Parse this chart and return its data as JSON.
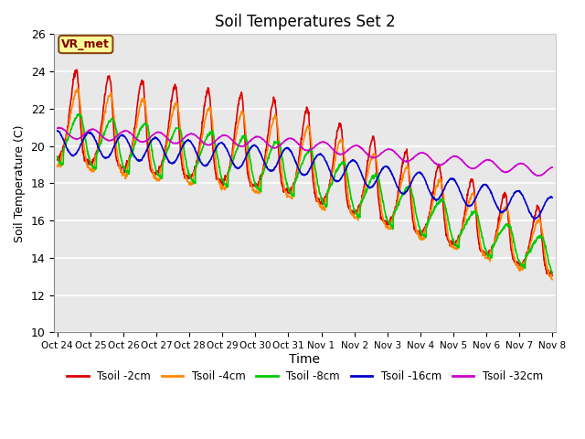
{
  "title": "Soil Temperatures Set 2",
  "xlabel": "Time",
  "ylabel": "Soil Temperature (C)",
  "ylim": [
    10,
    26
  ],
  "plot_bg_color": "#e8e8e8",
  "grid_color": "white",
  "annotation_text": "VR_met",
  "annotation_box_color": "#ffff99",
  "annotation_border_color": "#8b4513",
  "xtick_labels": [
    "Oct 24",
    "Oct 25",
    "Oct 26",
    "Oct 27",
    "Oct 28",
    "Oct 29",
    "Oct 30",
    "Oct 31",
    "Nov 1",
    "Nov 2",
    "Nov 3",
    "Nov 4",
    "Nov 5",
    "Nov 6",
    "Nov 7",
    "Nov 8"
  ],
  "series_colors": [
    "#dd0000",
    "#ff8800",
    "#00cc00",
    "#0000cc",
    "#cc00cc"
  ],
  "series_labels": [
    "Tsoil -2cm",
    "Tsoil -4cm",
    "Tsoil -8cm",
    "Tsoil -16cm",
    "Tsoil -32cm"
  ],
  "line_width": 1.2
}
